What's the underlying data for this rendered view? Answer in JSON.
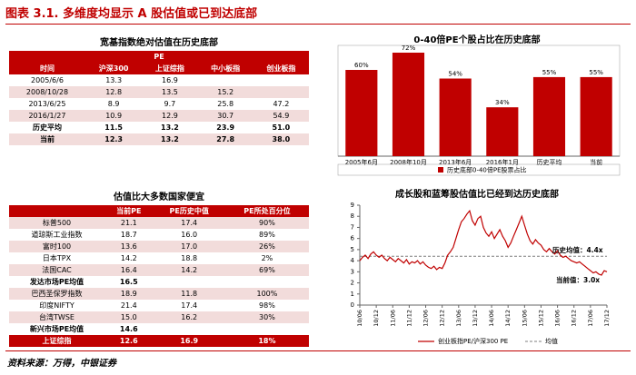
{
  "header": {
    "title": "图表 3.1. 多维度均显示 A 股估值或已到达底部"
  },
  "table1": {
    "title": "宽基指数绝对估值在历史底部",
    "group_header": "PE",
    "columns": [
      "时间",
      "沪深300",
      "上证综指",
      "中小板指",
      "创业板指"
    ],
    "rows": [
      [
        "2005/6/6",
        "13.3",
        "16.9",
        null,
        null
      ],
      [
        "2008/10/28",
        "12.8",
        "13.5",
        "15.2",
        null
      ],
      [
        "2013/6/25",
        "8.9",
        "9.7",
        "25.8",
        "47.2"
      ],
      [
        "2016/1/27",
        "10.9",
        "12.9",
        "30.7",
        "54.9"
      ],
      [
        "历史平均",
        "11.5",
        "13.2",
        "23.9",
        "51.0"
      ],
      [
        "当前",
        "12.3",
        "13.2",
        "27.8",
        "38.0"
      ]
    ]
  },
  "table2": {
    "title": "估值比大多数国家便宜",
    "columns": [
      null,
      "当前PE",
      "PE历史中值",
      "PE所处百分位"
    ],
    "rows": [
      [
        "标普500",
        "21.1",
        "17.4",
        "90%"
      ],
      [
        "道琼斯工业指数",
        "18.7",
        "16.0",
        "89%"
      ],
      [
        "富时100",
        "13.6",
        "17.0",
        "26%"
      ],
      [
        "日本TPX",
        "14.2",
        "18.8",
        "2%"
      ],
      [
        "法国CAC",
        "16.4",
        "14.2",
        "69%"
      ],
      [
        "发达市场PE均值",
        "16.5",
        null,
        null
      ],
      [
        "巴西圣保罗指数",
        "18.9",
        "11.8",
        "100%"
      ],
      [
        "印度NIFTY",
        "21.4",
        "17.4",
        "98%"
      ],
      [
        "台湾TWSE",
        "15.0",
        "16.2",
        "30%"
      ],
      [
        "新兴市场PE均值",
        "14.6",
        null,
        null
      ],
      [
        "上证综指",
        "12.6",
        "16.9",
        "18%"
      ]
    ]
  },
  "chart_data": [
    {
      "type": "bar",
      "title": "0-40倍PE个股占比在历史底部",
      "categories": [
        "2005年6月",
        "2008年10月",
        "2013年6月",
        "2016年1月",
        "历史平均",
        "当前"
      ],
      "series": [
        {
          "name": "历史底部0-40倍PE股票占比",
          "color": "#c00000",
          "values": [
            60,
            72,
            54,
            34,
            55,
            55
          ],
          "value_labels": [
            "60%",
            "72%",
            "54%",
            "34%",
            "55%",
            "55%"
          ]
        }
      ]
    },
    {
      "type": "line",
      "title": "成长股和蓝筹股估值比已经到达历史底部",
      "categories": [
        "10/06",
        null,
        null,
        null,
        null,
        null,
        "10/12",
        null,
        null,
        null,
        null,
        null,
        "11/06",
        null,
        null,
        null,
        null,
        null,
        "11/12",
        null,
        null,
        null,
        null,
        null,
        "12/06",
        null,
        null,
        null,
        null,
        null,
        "12/12",
        null,
        null,
        null,
        null,
        null,
        "13/06",
        null,
        null,
        null,
        null,
        null,
        "13/12",
        null,
        null,
        null,
        null,
        null,
        "14/06",
        null,
        null,
        null,
        null,
        null,
        "14/12",
        null,
        null,
        null,
        null,
        null,
        "15/06",
        null,
        null,
        null,
        null,
        null,
        "15/12",
        null,
        null,
        null,
        null,
        null,
        "16/06",
        null,
        null,
        null,
        null,
        null,
        "16/12",
        null,
        null,
        null,
        null,
        null,
        "17/06",
        null,
        null,
        null,
        null,
        null,
        "17/12"
      ],
      "series": [
        {
          "name": "创业板指PE/沪深300 PE",
          "color": "#c00000",
          "values": [
            4.0,
            4.3,
            4.5,
            4.2,
            4.6,
            4.8,
            4.5,
            4.3,
            4.5,
            4.2,
            4.0,
            4.3,
            4.1,
            3.9,
            4.2,
            4.0,
            3.8,
            4.1,
            3.7,
            3.9,
            3.8,
            4.0,
            3.7,
            3.9,
            3.6,
            3.4,
            3.3,
            3.5,
            3.2,
            3.4,
            3.3,
            3.8,
            4.5,
            4.8,
            5.2,
            6.0,
            6.8,
            7.5,
            7.8,
            8.2,
            8.5,
            7.6,
            7.2,
            7.8,
            8.0,
            7.0,
            6.5,
            6.2,
            6.6,
            6.0,
            6.4,
            6.8,
            6.2,
            5.8,
            5.2,
            5.6,
            6.2,
            6.8,
            7.4,
            8.0,
            7.2,
            6.4,
            5.8,
            5.5,
            5.9,
            5.6,
            5.4,
            5.0,
            4.8,
            5.1,
            4.8,
            4.6,
            4.9,
            4.5,
            4.3,
            4.4,
            4.2,
            4.0,
            3.9,
            3.8,
            3.9,
            3.7,
            3.5,
            3.3,
            3.1,
            2.9,
            3.0,
            2.8,
            2.7,
            3.1,
            3.0
          ]
        }
      ],
      "mean_line": {
        "name": "均值",
        "value": 4.4,
        "color": "#7f7f7f"
      },
      "annotations": [
        "历史均值：4.4x",
        "当前值：3.0x"
      ],
      "ylim": [
        0,
        9
      ],
      "yticks": [
        0,
        1,
        2,
        3,
        4,
        5,
        6,
        7,
        8,
        9
      ]
    }
  ],
  "footer": {
    "source": "资料来源：万得，中银证券"
  }
}
